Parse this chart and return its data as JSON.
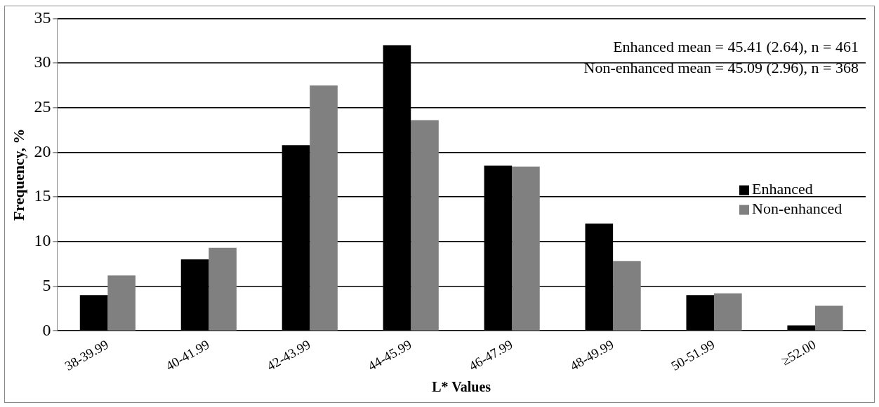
{
  "chart_data": {
    "type": "bar",
    "ylabel": "Frequency, %",
    "xlabel": "L* Values",
    "categories": [
      "38-39.99",
      "40-41.99",
      "42-43.99",
      "44-45.99",
      "46-47.99",
      "48-49.99",
      "50-51.99",
      "≥52.00"
    ],
    "series": [
      {
        "name": "Enhanced",
        "color": "#000000",
        "values": [
          4.0,
          8.0,
          20.8,
          32.0,
          18.5,
          12.0,
          4.0,
          0.6
        ]
      },
      {
        "name": "Non-enhanced",
        "color": "#808080",
        "values": [
          6.2,
          9.3,
          27.5,
          23.6,
          18.4,
          7.8,
          4.2,
          2.8
        ]
      }
    ],
    "ylim": [
      0,
      35
    ],
    "yticks": [
      0,
      5,
      10,
      15,
      20,
      25,
      30,
      35
    ],
    "grid": "y",
    "legend": "right",
    "annotations": [
      "Enhanced mean = 45.41 (2.64), n = 461",
      "Non-enhanced mean = 45.09 (2.96), n = 368"
    ]
  }
}
